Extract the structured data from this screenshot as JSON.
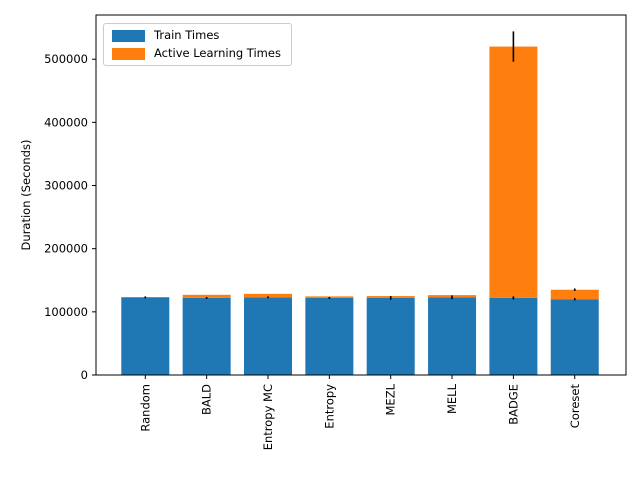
{
  "chart_data": {
    "type": "bar",
    "stacked": true,
    "title": "",
    "xlabel": "",
    "ylabel": "Duration (Seconds)",
    "categories": [
      "Random",
      "BALD",
      "Entropy MC",
      "Entropy",
      "MEZL",
      "MELL",
      "BADGE",
      "Coreset"
    ],
    "series": [
      {
        "name": "Train Times",
        "color": "#1f77b4",
        "values": [
          123000,
          122000,
          123000,
          122000,
          122000,
          123000,
          122000,
          120000
        ]
      },
      {
        "name": "Active Learning Times",
        "color": "#ff7f0e",
        "values": [
          500,
          5000,
          5500,
          2500,
          3000,
          3500,
          398000,
          15000
        ]
      }
    ],
    "totals": [
      123500,
      127000,
      128500,
      124500,
      125000,
      126500,
      520000,
      135000
    ],
    "error_bars": {
      "train_err": [
        1500,
        1500,
        1500,
        1500,
        3000,
        3000,
        2500,
        2000
      ],
      "total_err": [
        0,
        0,
        0,
        0,
        0,
        0,
        24000,
        2000
      ],
      "color": "#000000"
    },
    "yticks": [
      0,
      100000,
      200000,
      300000,
      400000,
      500000
    ],
    "ylim": [
      0,
      570000
    ],
    "grid": false,
    "legend_position": "upper-left",
    "x_tick_label_rotation": 90,
    "spine_color": "#000000",
    "background_color": "#ffffff"
  }
}
